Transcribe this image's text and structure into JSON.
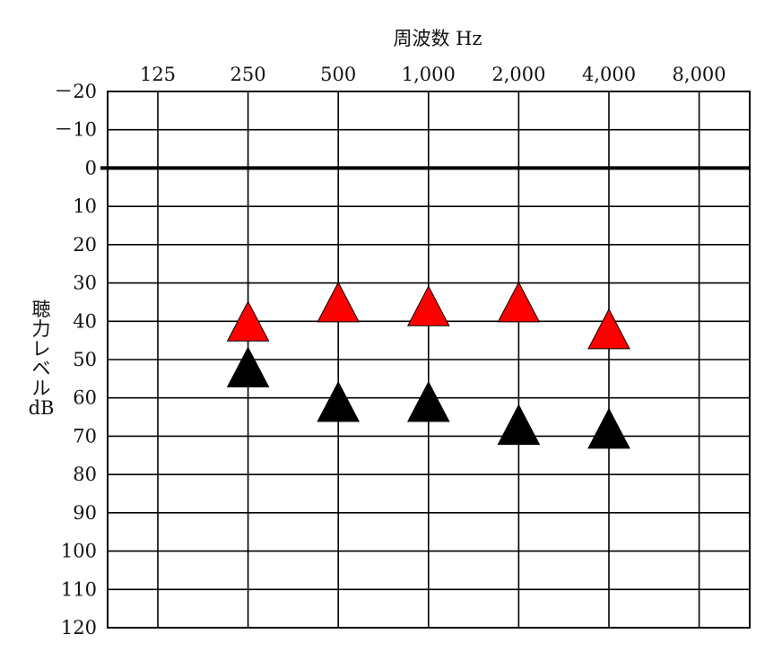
{
  "chart_data": {
    "type": "scatter",
    "title": "",
    "xlabel": "周波数 Hz",
    "ylabel": "聴力レベル dB",
    "ylabel_lines": [
      "聴",
      "力",
      "レ",
      "ベ",
      "ル",
      "dB"
    ],
    "x_categories": [
      "125",
      "250",
      "500",
      "1,000",
      "2,000",
      "4,000",
      "8,000"
    ],
    "y_ticks": [
      "－20",
      "－10",
      "0",
      "10",
      "20",
      "30",
      "40",
      "50",
      "60",
      "70",
      "80",
      "90",
      "100",
      "110",
      "120"
    ],
    "y_tick_values": [
      -20,
      -10,
      0,
      10,
      20,
      30,
      40,
      50,
      60,
      70,
      80,
      90,
      100,
      110,
      120
    ],
    "ylim": [
      -20,
      120
    ],
    "y_inverted": true,
    "zero_line": 0,
    "marker": "triangle-up",
    "series": [
      {
        "color": "#ff0000",
        "points": [
          {
            "x": "250",
            "y": 40
          },
          {
            "x": "500",
            "y": 35
          },
          {
            "x": "1,000",
            "y": 36
          },
          {
            "x": "2,000",
            "y": 35
          },
          {
            "x": "4,000",
            "y": 42
          }
        ]
      },
      {
        "color": "#000000",
        "points": [
          {
            "x": "250",
            "y": 52
          },
          {
            "x": "500",
            "y": 61
          },
          {
            "x": "1,000",
            "y": 61
          },
          {
            "x": "2,000",
            "y": 67
          },
          {
            "x": "4,000",
            "y": 68
          }
        ]
      }
    ]
  }
}
